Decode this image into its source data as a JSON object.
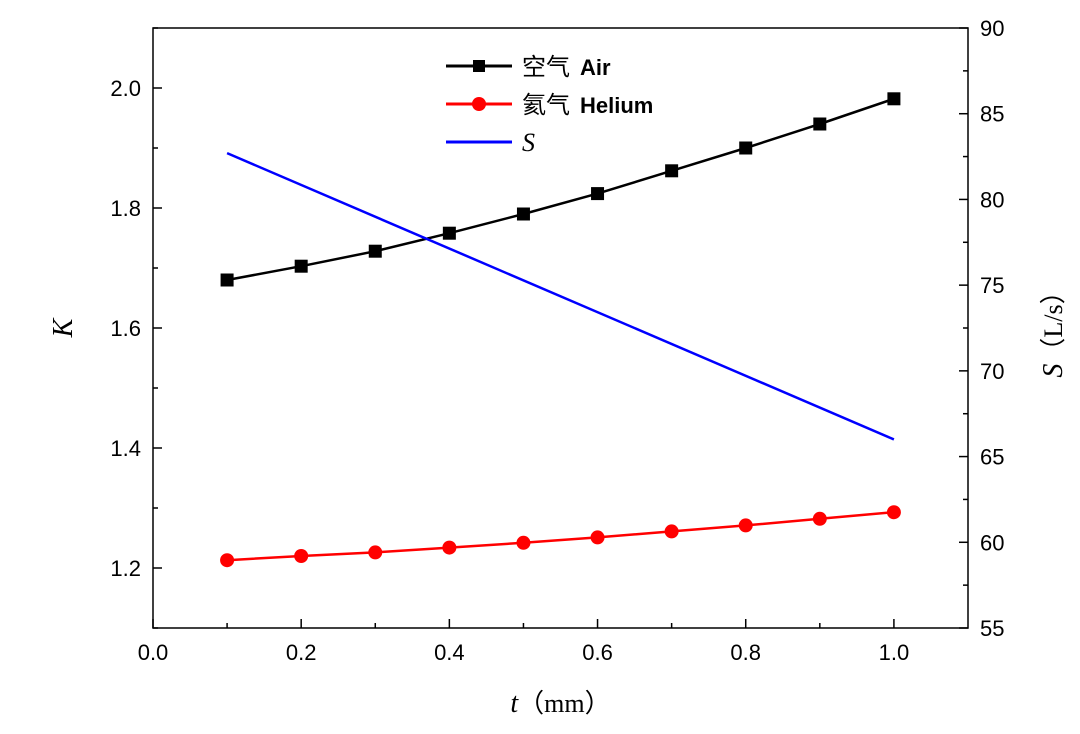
{
  "chart_data": {
    "type": "line",
    "x_axis": {
      "label_var": "t",
      "label_unit": "（mm）",
      "range": [
        0.0,
        1.1
      ],
      "ticks": [
        0.0,
        0.2,
        0.4,
        0.6,
        0.8,
        1.0
      ],
      "tick_labels": [
        "0.0",
        "0.2",
        "0.4",
        "0.6",
        "0.8",
        "1.0"
      ]
    },
    "y_left": {
      "label": "K",
      "range": [
        1.1,
        2.1
      ],
      "ticks": [
        1.2,
        1.4,
        1.6,
        1.8,
        2.0
      ],
      "tick_labels": [
        "1.2",
        "1.4",
        "1.6",
        "1.8",
        "2.0"
      ]
    },
    "y_right": {
      "label_var": "S",
      "label_unit": "（L/s）",
      "range": [
        55,
        90
      ],
      "ticks": [
        55,
        60,
        65,
        70,
        75,
        80,
        85,
        90
      ],
      "tick_labels": [
        "55",
        "60",
        "65",
        "70",
        "75",
        "80",
        "85",
        "90"
      ]
    },
    "grid": false,
    "legend_position": "top-center",
    "x": [
      0.1,
      0.2,
      0.3,
      0.4,
      0.5,
      0.6,
      0.7,
      0.8,
      0.9,
      1.0
    ],
    "series": [
      {
        "name_cn": "空气",
        "name_en": "Air",
        "axis": "left",
        "color": "#000000",
        "marker": "square",
        "values": [
          1.68,
          1.703,
          1.728,
          1.758,
          1.79,
          1.824,
          1.862,
          1.9,
          1.94,
          1.982
        ]
      },
      {
        "name_cn": "氦气",
        "name_en": "Helium",
        "axis": "left",
        "color": "#ff0000",
        "marker": "circle",
        "values": [
          1.213,
          1.22,
          1.226,
          1.234,
          1.242,
          1.251,
          1.261,
          1.271,
          1.282,
          1.293
        ]
      },
      {
        "name": "S",
        "axis": "right",
        "color": "#0000ff",
        "marker": "none",
        "values_at_endpoints": {
          "x": [
            0.1,
            1.0
          ],
          "y": [
            82.7,
            66.0
          ]
        }
      }
    ]
  }
}
